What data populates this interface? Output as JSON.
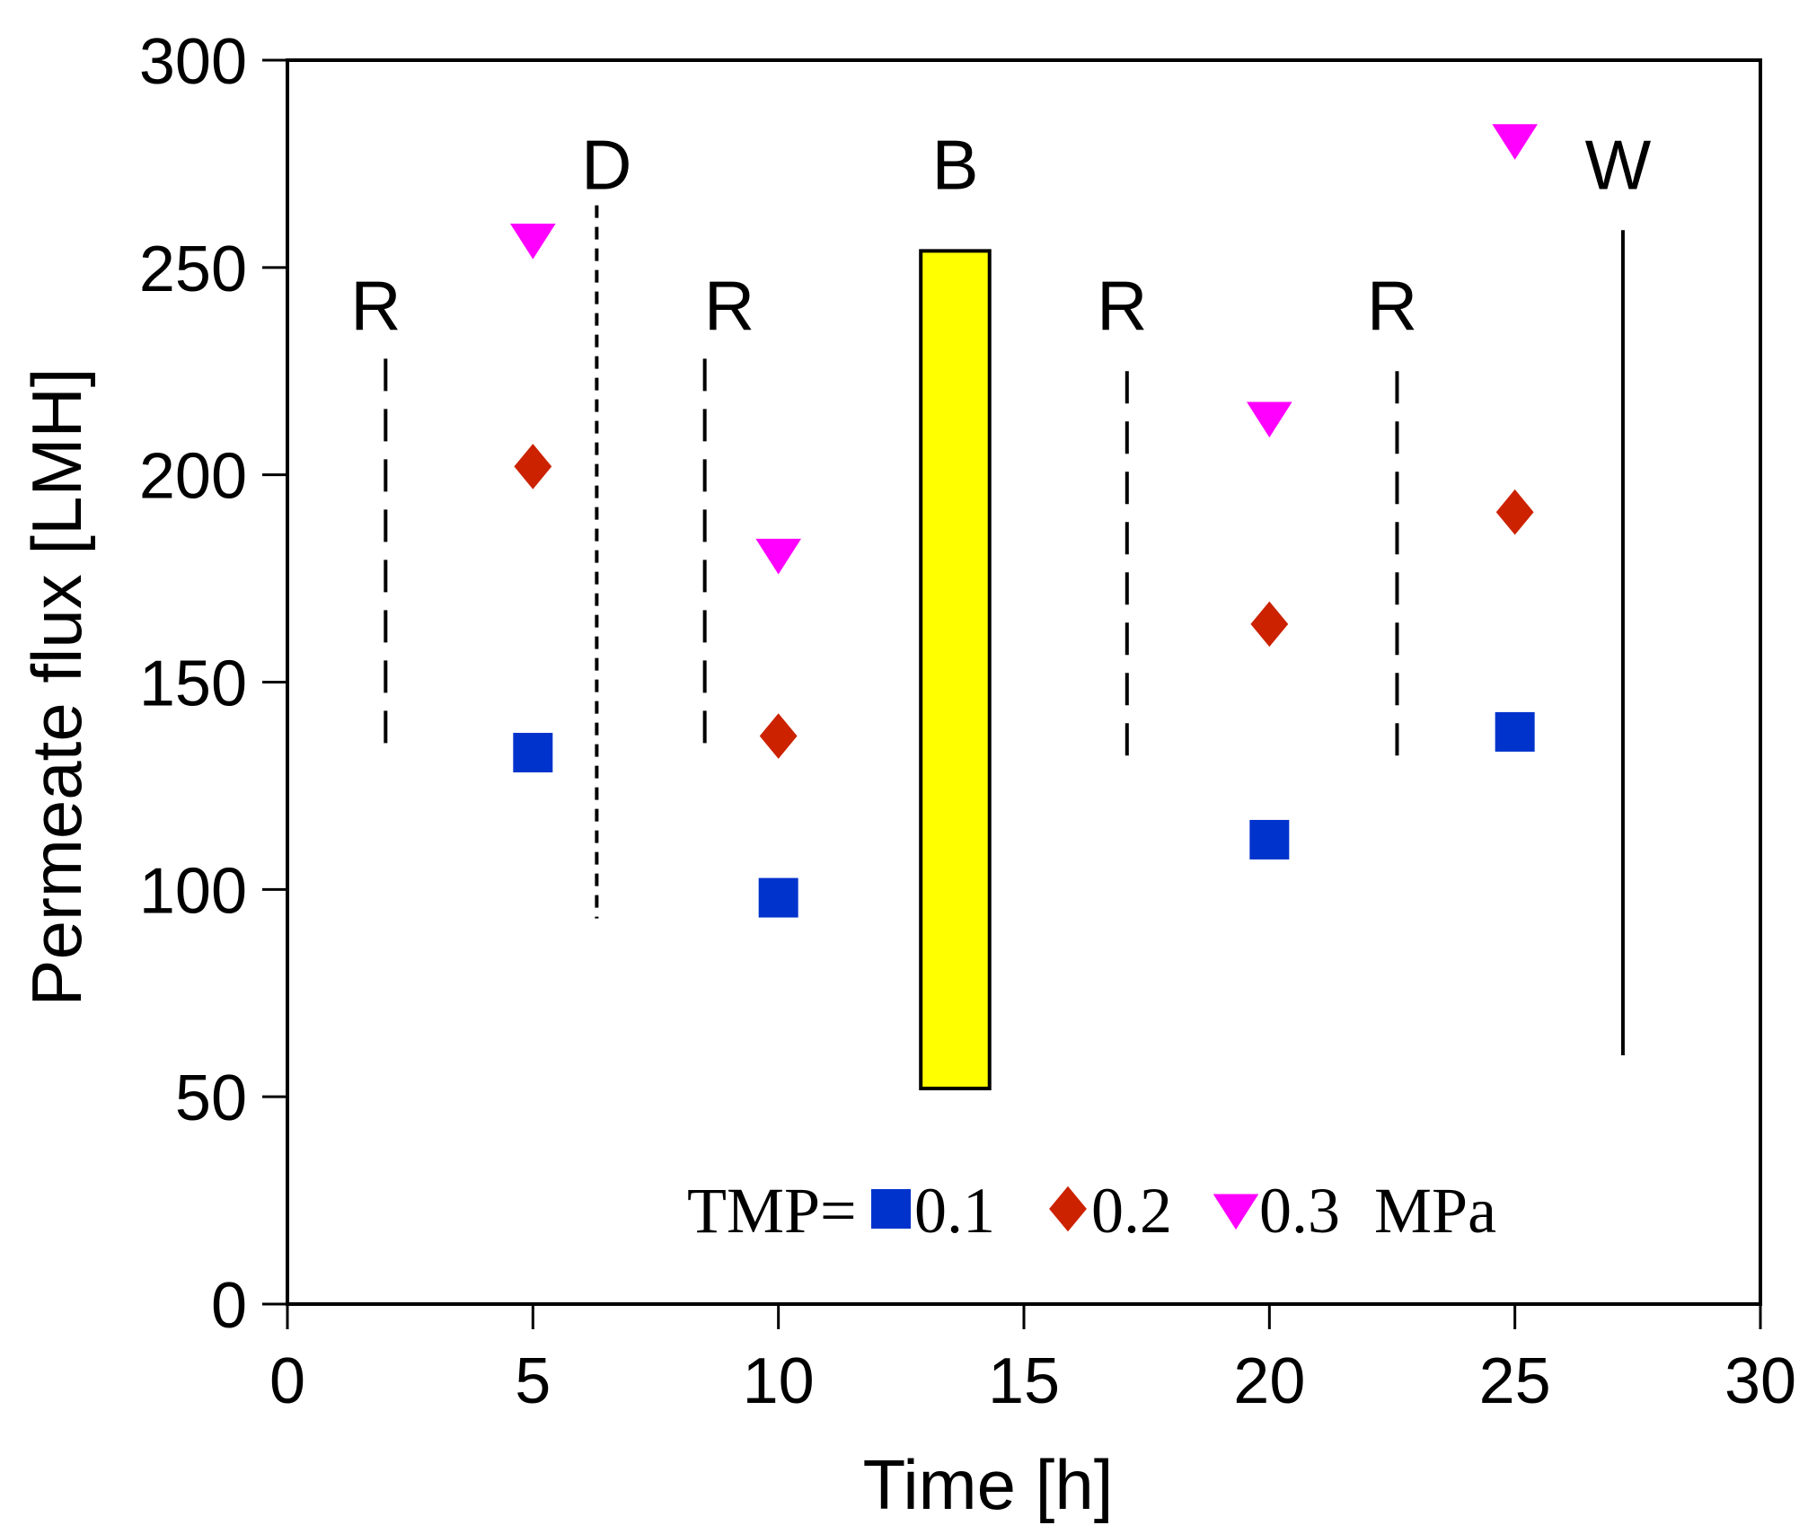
{
  "chart_data": {
    "type": "scatter",
    "title": "",
    "xlabel": "Time [h]",
    "ylabel": "Permeate flux [LMH]",
    "xlim": [
      0,
      30
    ],
    "ylim": [
      0,
      300
    ],
    "xticks": [
      0,
      5,
      10,
      15,
      20,
      25,
      30
    ],
    "yticks": [
      0,
      50,
      100,
      150,
      200,
      250,
      300
    ],
    "grid": false,
    "legend": {
      "prefix": "TMP=",
      "suffix": "MPa",
      "position": "bottom-center"
    },
    "series": [
      {
        "name": "0.1",
        "marker": "square",
        "color": "#0033CC",
        "points": [
          [
            5,
            133
          ],
          [
            10,
            98
          ],
          [
            20,
            112
          ],
          [
            25,
            138
          ]
        ]
      },
      {
        "name": "0.2",
        "marker": "diamond",
        "color": "#CC2200",
        "points": [
          [
            5,
            202
          ],
          [
            10,
            137
          ],
          [
            20,
            164
          ],
          [
            25,
            191
          ]
        ]
      },
      {
        "name": "0.3",
        "marker": "triangle-down",
        "color": "#FF00FF",
        "points": [
          [
            5,
            257
          ],
          [
            10,
            181
          ],
          [
            20,
            214
          ],
          [
            25,
            281
          ]
        ]
      }
    ],
    "annotations": [
      {
        "label": "R",
        "x": 2.0,
        "line_y": [
          132,
          228
        ],
        "line_style": "dashed",
        "label_x": 1.8,
        "label_y": 241
      },
      {
        "label": "D",
        "x": 6.3,
        "line_y": [
          93,
          265
        ],
        "line_style": "dotted",
        "label_x": 6.5,
        "label_y": 275
      },
      {
        "label": "R",
        "x": 8.5,
        "line_y": [
          131,
          228
        ],
        "line_style": "dashed",
        "label_x": 9.0,
        "label_y": 241
      },
      {
        "label": "R",
        "x": 17.1,
        "line_y": [
          128,
          225
        ],
        "line_style": "dashed",
        "label_x": 17.0,
        "label_y": 241
      },
      {
        "label": "R",
        "x": 22.6,
        "line_y": [
          128,
          225
        ],
        "line_style": "dashed",
        "label_x": 22.5,
        "label_y": 241
      },
      {
        "label": "W",
        "x": 27.2,
        "line_y": [
          60,
          259
        ],
        "line_style": "solid",
        "label_x": 27.1,
        "label_y": 275
      }
    ],
    "band": {
      "label": "B",
      "x0": 12.9,
      "x1": 14.3,
      "y0": 52,
      "y1": 254,
      "color": "#FFFF00",
      "label_x": 13.6,
      "label_y": 275
    }
  }
}
